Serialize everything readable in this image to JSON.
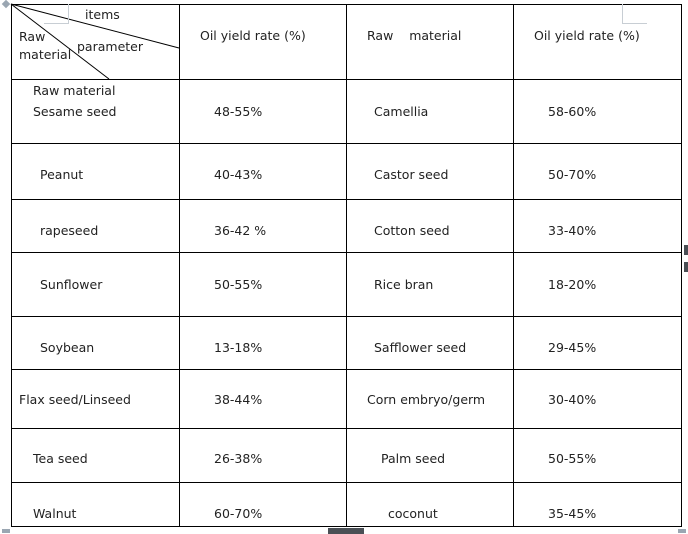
{
  "table": {
    "header": {
      "items": "items",
      "parameter": "parameter",
      "raw_label_line1": "Raw",
      "raw_label_line2": "material",
      "oil_yield_1": "Oil yield rate (%)",
      "raw_material_2": "Raw    material",
      "oil_yield_2": "Oil yield rate (%)"
    },
    "first_row_note": "Raw material",
    "rows": [
      {
        "material_a": "Sesame seed",
        "yield_a": "48-55%",
        "material_b": "Camellia",
        "yield_b": "58-60%"
      },
      {
        "material_a": "Peanut",
        "yield_a": "40-43%",
        "material_b": "Castor seed",
        "yield_b": "50-70%"
      },
      {
        "material_a": "rapeseed",
        "yield_a": "36-42 %",
        "material_b": "Cotton seed",
        "yield_b": "33-40%"
      },
      {
        "material_a": "Sunflower",
        "yield_a": "50-55%",
        "material_b": "Rice bran",
        "yield_b": "18-20%"
      },
      {
        "material_a": "Soybean",
        "yield_a": "13-18%",
        "material_b": "Safflower seed",
        "yield_b": "29-45%"
      },
      {
        "material_a": "Flax seed/Linseed",
        "yield_a": "38-44%",
        "material_b": "Corn embryo/germ",
        "yield_b": "30-40%"
      },
      {
        "material_a": "Tea seed",
        "yield_a": "26-38%",
        "material_b": "Palm seed",
        "yield_b": "50-55%"
      },
      {
        "material_a": "Walnut",
        "yield_a": "60-70%",
        "material_b": "coconut",
        "yield_b": "35-45%"
      }
    ]
  },
  "colors": {
    "grid": "#000000",
    "text": "#222222",
    "marks": "#9aa6b2"
  }
}
